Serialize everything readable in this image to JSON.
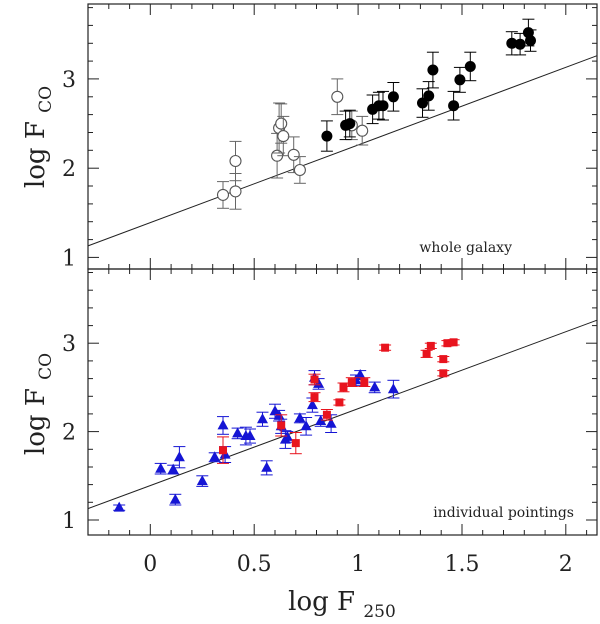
{
  "chart_data": {
    "type": "scatter",
    "xlabel": "log F",
    "xlabel_sub": "250",
    "xlim": [
      -0.3,
      2.15
    ],
    "x_ticks": [
      0,
      0.5,
      1,
      1.5,
      2
    ],
    "x_tick_labels": [
      "0",
      "0.5",
      "1",
      "1.5",
      "2"
    ],
    "fit_line": {
      "slope": 0.87,
      "intercept": 1.39
    },
    "panels": [
      {
        "id": "whole-galaxy",
        "annotation": "whole galaxy",
        "ylabel": "log F",
        "ylabel_sub": "CO",
        "ylim": [
          0.87,
          3.84
        ],
        "y_ticks": [
          1,
          2,
          3
        ],
        "y_tick_labels": [
          "1",
          "2",
          "3"
        ],
        "series": [
          {
            "name": "whole galaxy (open)",
            "marker": "open-circle",
            "color": "#555555",
            "points": [
              {
                "x": 0.35,
                "y": 1.7,
                "err": 0.15
              },
              {
                "x": 0.41,
                "y": 2.08,
                "err": 0.22
              },
              {
                "x": 0.41,
                "y": 1.74,
                "err": 0.2
              },
              {
                "x": 0.61,
                "y": 2.14,
                "err": 0.25
              },
              {
                "x": 0.62,
                "y": 2.45,
                "err": 0.28
              },
              {
                "x": 0.63,
                "y": 2.5,
                "err": 0.22
              },
              {
                "x": 0.64,
                "y": 2.36,
                "err": 0.22
              },
              {
                "x": 0.69,
                "y": 2.15,
                "err": 0.2
              },
              {
                "x": 0.72,
                "y": 1.98,
                "err": 0.15
              },
              {
                "x": 0.9,
                "y": 2.8,
                "err": 0.2
              },
              {
                "x": 0.97,
                "y": 2.48,
                "err": 0.16
              },
              {
                "x": 1.02,
                "y": 2.42,
                "err": 0.16
              }
            ]
          },
          {
            "name": "whole galaxy (filled)",
            "marker": "filled-circle",
            "color": "#000000",
            "points": [
              {
                "x": 0.85,
                "y": 2.36,
                "err": 0.17
              },
              {
                "x": 0.94,
                "y": 2.48,
                "err": 0.16
              },
              {
                "x": 0.96,
                "y": 2.5,
                "err": 0.15
              },
              {
                "x": 1.07,
                "y": 2.66,
                "err": 0.16
              },
              {
                "x": 1.1,
                "y": 2.7,
                "err": 0.15
              },
              {
                "x": 1.12,
                "y": 2.7,
                "err": 0.16
              },
              {
                "x": 1.17,
                "y": 2.8,
                "err": 0.16
              },
              {
                "x": 1.31,
                "y": 2.73,
                "err": 0.16
              },
              {
                "x": 1.34,
                "y": 2.81,
                "err": 0.16
              },
              {
                "x": 1.36,
                "y": 3.1,
                "err": 0.2
              },
              {
                "x": 1.46,
                "y": 2.7,
                "err": 0.16
              },
              {
                "x": 1.49,
                "y": 2.99,
                "err": 0.14
              },
              {
                "x": 1.54,
                "y": 3.14,
                "err": 0.16
              },
              {
                "x": 1.74,
                "y": 3.4,
                "err": 0.13
              },
              {
                "x": 1.78,
                "y": 3.39,
                "err": 0.12
              },
              {
                "x": 1.82,
                "y": 3.52,
                "err": 0.15
              },
              {
                "x": 1.83,
                "y": 3.43,
                "err": 0.12
              }
            ]
          }
        ]
      },
      {
        "id": "individual-pointings",
        "annotation": "individual pointings",
        "ylabel": "log F",
        "ylabel_sub": "CO",
        "ylim": [
          0.83,
          3.84
        ],
        "y_ticks": [
          1,
          2,
          3
        ],
        "y_tick_labels": [
          "1",
          "2",
          "3"
        ],
        "series": [
          {
            "name": "individual pointings (blue)",
            "marker": "filled-triangle",
            "color": "#1515d4",
            "points": [
              {
                "x": -0.15,
                "y": 1.14,
                "err": 0.03
              },
              {
                "x": 0.05,
                "y": 1.58,
                "err": 0.06
              },
              {
                "x": 0.11,
                "y": 1.57,
                "err": 0.05
              },
              {
                "x": 0.12,
                "y": 1.23,
                "err": 0.06
              },
              {
                "x": 0.14,
                "y": 1.71,
                "err": 0.12
              },
              {
                "x": 0.25,
                "y": 1.44,
                "err": 0.06
              },
              {
                "x": 0.31,
                "y": 1.71,
                "err": 0.05
              },
              {
                "x": 0.35,
                "y": 2.07,
                "err": 0.1
              },
              {
                "x": 0.36,
                "y": 1.74,
                "err": 0.09
              },
              {
                "x": 0.42,
                "y": 1.98,
                "err": 0.06
              },
              {
                "x": 0.46,
                "y": 1.95,
                "err": 0.1
              },
              {
                "x": 0.48,
                "y": 1.95,
                "err": 0.08
              },
              {
                "x": 0.54,
                "y": 2.14,
                "err": 0.08
              },
              {
                "x": 0.56,
                "y": 1.59,
                "err": 0.08
              },
              {
                "x": 0.6,
                "y": 2.23,
                "err": 0.08
              },
              {
                "x": 0.62,
                "y": 2.18,
                "err": 0.06
              },
              {
                "x": 0.63,
                "y": 2.06,
                "err": 0.08
              },
              {
                "x": 0.65,
                "y": 1.91,
                "err": 0.1
              },
              {
                "x": 0.66,
                "y": 1.94,
                "err": 0.06
              },
              {
                "x": 0.72,
                "y": 2.15,
                "err": 0.05
              },
              {
                "x": 0.75,
                "y": 2.06,
                "err": 0.1
              },
              {
                "x": 0.78,
                "y": 2.3,
                "err": 0.08
              },
              {
                "x": 0.79,
                "y": 2.61,
                "err": 0.08
              },
              {
                "x": 0.81,
                "y": 2.54,
                "err": 0.06
              },
              {
                "x": 0.82,
                "y": 2.12,
                "err": 0.06
              },
              {
                "x": 0.87,
                "y": 2.09,
                "err": 0.1
              },
              {
                "x": 0.99,
                "y": 2.58,
                "err": 0.06
              },
              {
                "x": 1.01,
                "y": 2.64,
                "err": 0.05
              },
              {
                "x": 1.08,
                "y": 2.5,
                "err": 0.06
              },
              {
                "x": 1.17,
                "y": 2.48,
                "err": 0.1
              }
            ]
          },
          {
            "name": "individual pointings (red)",
            "marker": "filled-square",
            "color": "#e8141e",
            "points": [
              {
                "x": 0.35,
                "y": 1.79,
                "err": 0.15
              },
              {
                "x": 0.63,
                "y": 2.07,
                "err": 0.12
              },
              {
                "x": 0.7,
                "y": 1.87,
                "err": 0.12
              },
              {
                "x": 0.79,
                "y": 2.59,
                "err": 0.06
              },
              {
                "x": 0.79,
                "y": 2.39,
                "err": 0.05
              },
              {
                "x": 0.85,
                "y": 2.19,
                "err": 0.06
              },
              {
                "x": 0.91,
                "y": 2.33,
                "err": 0.03
              },
              {
                "x": 0.93,
                "y": 2.5,
                "err": 0.05
              },
              {
                "x": 0.97,
                "y": 2.56,
                "err": 0.05
              },
              {
                "x": 1.03,
                "y": 2.56,
                "err": 0.05
              },
              {
                "x": 1.13,
                "y": 2.95,
                "err": 0.03
              },
              {
                "x": 1.33,
                "y": 2.88,
                "err": 0.04
              },
              {
                "x": 1.35,
                "y": 2.97,
                "err": 0.03
              },
              {
                "x": 1.41,
                "y": 2.82,
                "err": 0.03
              },
              {
                "x": 1.41,
                "y": 2.66,
                "err": 0.03
              },
              {
                "x": 1.43,
                "y": 3.0,
                "err": 0.03
              },
              {
                "x": 1.46,
                "y": 3.01,
                "err": 0.03
              }
            ]
          }
        ]
      }
    ]
  }
}
